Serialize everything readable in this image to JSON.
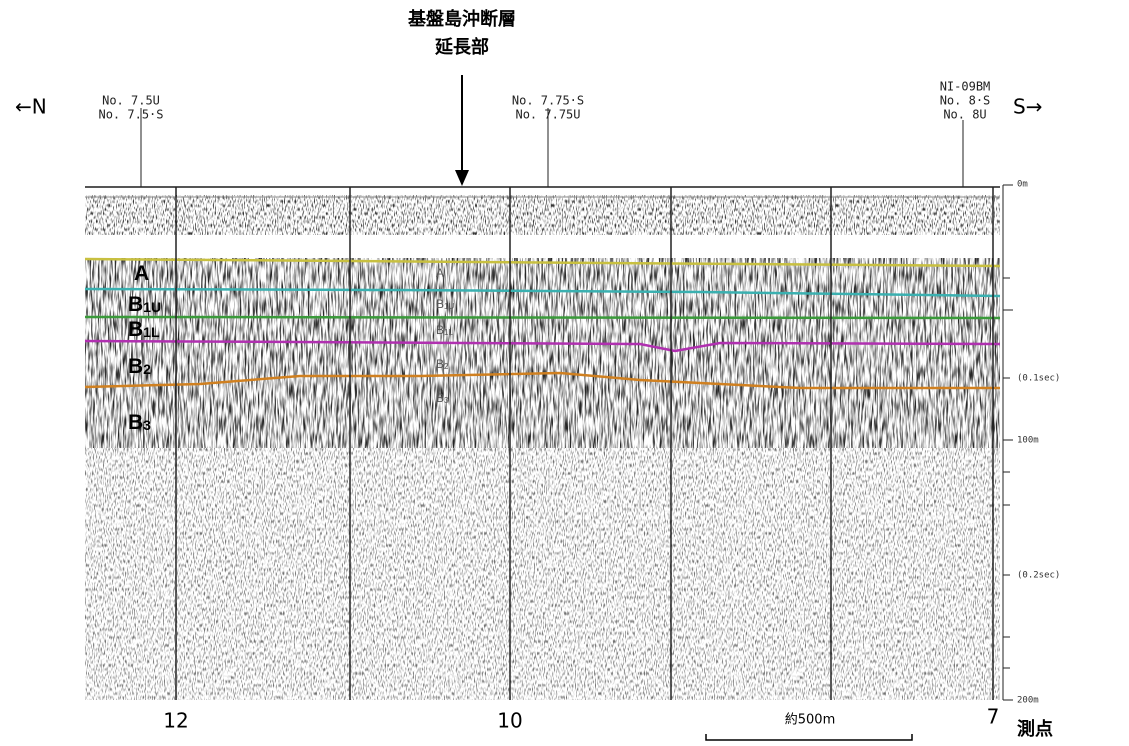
{
  "title": {
    "line1": "基盤島沖断層",
    "line2": "延長部"
  },
  "direction": {
    "north": "←N",
    "south": "S→"
  },
  "stations": [
    {
      "lines": [
        "No. 7.5U",
        "No. 7.5·S"
      ]
    },
    {
      "lines": [
        "No. 7.75·S",
        "No. 7.75U"
      ]
    },
    {
      "lines": [
        "NI-09BM",
        "No. 8·S",
        "No. 8U"
      ]
    }
  ],
  "depth_scale": [
    "0m",
    "(0.1sec)",
    "100m",
    "(0.2sec)",
    "200m"
  ],
  "layers": [
    {
      "main": "A",
      "sub": ""
    },
    {
      "main": "B",
      "sub": "1U"
    },
    {
      "main": "B",
      "sub": "1L"
    },
    {
      "main": "B",
      "sub": "2"
    },
    {
      "main": "B",
      "sub": "3"
    }
  ],
  "survey_points": [
    "12",
    "10",
    "7"
  ],
  "survey_point_label": "測点",
  "scale_bar": "約500m"
}
